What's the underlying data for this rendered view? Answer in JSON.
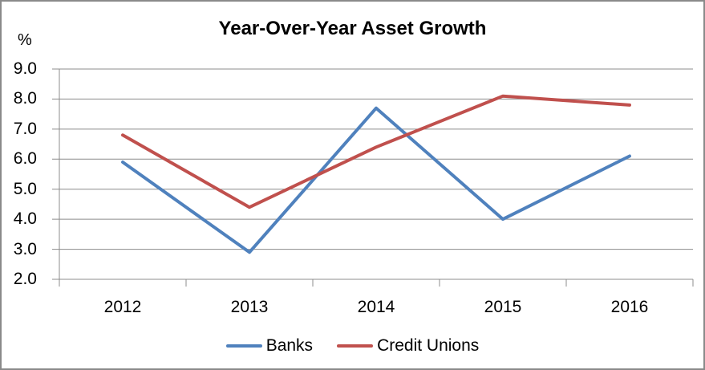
{
  "chart_data": {
    "type": "line",
    "title": "Year-Over-Year Asset Growth",
    "ylabel": "%",
    "xlabel": "",
    "categories": [
      "2012",
      "2013",
      "2014",
      "2015",
      "2016"
    ],
    "series": [
      {
        "name": "Banks",
        "color": "#4F81BD",
        "values": [
          5.9,
          2.9,
          7.7,
          4.0,
          6.1
        ]
      },
      {
        "name": "Credit Unions",
        "color": "#C0504D",
        "values": [
          6.8,
          4.4,
          6.4,
          8.1,
          7.8
        ]
      }
    ],
    "ylim": [
      2.0,
      9.0
    ],
    "y_tick_step": 1.0,
    "y_tick_labels": [
      "9.0",
      "8.0",
      "7.0",
      "6.0",
      "5.0",
      "4.0",
      "3.0",
      "2.0"
    ],
    "grid": true,
    "legend_position": "bottom"
  },
  "colors": {
    "axis": "#8c8c8c",
    "gridline": "#8c8c8c",
    "frame_border": "#8a8a8a",
    "text": "#000000",
    "background": "#ffffff"
  }
}
